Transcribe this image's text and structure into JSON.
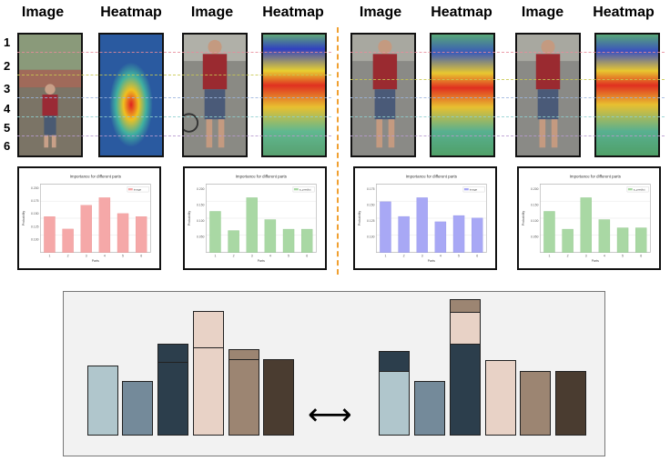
{
  "headers": {
    "image_label": "Image",
    "heatmap_label": "Heatmap"
  },
  "row_numbers": [
    "1",
    "2",
    "3",
    "4",
    "5",
    "6"
  ],
  "row_line_colors": [
    "#e88b9a",
    "#d6d65a",
    "#9db6e0",
    "#8fd1d1",
    "#b89ad0",
    "#9a8ad8"
  ],
  "charts": [
    {
      "title": "Importance for different parts",
      "legend": "image",
      "color": "#f5a8a8",
      "edge": "#e88888",
      "xlabel": "Parts",
      "ylabel": "Probability",
      "x": [
        "1",
        "2",
        "3",
        "4",
        "5",
        "6"
      ],
      "y": [
        0.095,
        0.062,
        0.125,
        0.145,
        0.103,
        0.095
      ],
      "yticks": [
        "0.100",
        "0.125",
        "0.150",
        "0.175",
        "0.200"
      ]
    },
    {
      "title": "Importance for different parts",
      "legend": "a_predict",
      "color": "#a9d8a4",
      "edge": "#86c080",
      "xlabel": "Parts",
      "ylabel": "Probability",
      "x": [
        "1",
        "2",
        "3",
        "4",
        "5",
        "6"
      ],
      "y": [
        0.15,
        0.08,
        0.2,
        0.12,
        0.085,
        0.085
      ],
      "yticks": [
        "0.050",
        "0.100",
        "0.150",
        "0.200"
      ]
    },
    {
      "title": "Importance for different parts",
      "legend": "image",
      "color": "#a8a8f5",
      "edge": "#8888e0",
      "xlabel": "Parts",
      "ylabel": "Probability",
      "x": [
        "1",
        "2",
        "3",
        "4",
        "5",
        "6"
      ],
      "y": [
        0.162,
        0.115,
        0.175,
        0.098,
        0.118,
        0.11
      ],
      "yticks": [
        "0.100",
        "0.125",
        "0.150",
        "0.175"
      ]
    },
    {
      "title": "Importance for different parts",
      "legend": "a_predict",
      "color": "#a9d8a4",
      "edge": "#86c080",
      "xlabel": "Parts",
      "ylabel": "Probability",
      "x": [
        "1",
        "2",
        "3",
        "4",
        "5",
        "6"
      ],
      "y": [
        0.15,
        0.085,
        0.2,
        0.12,
        0.09,
        0.09
      ],
      "yticks": [
        "0.050",
        "0.100",
        "0.150",
        "0.200"
      ]
    }
  ],
  "arrow_symbol": "⟷"
}
